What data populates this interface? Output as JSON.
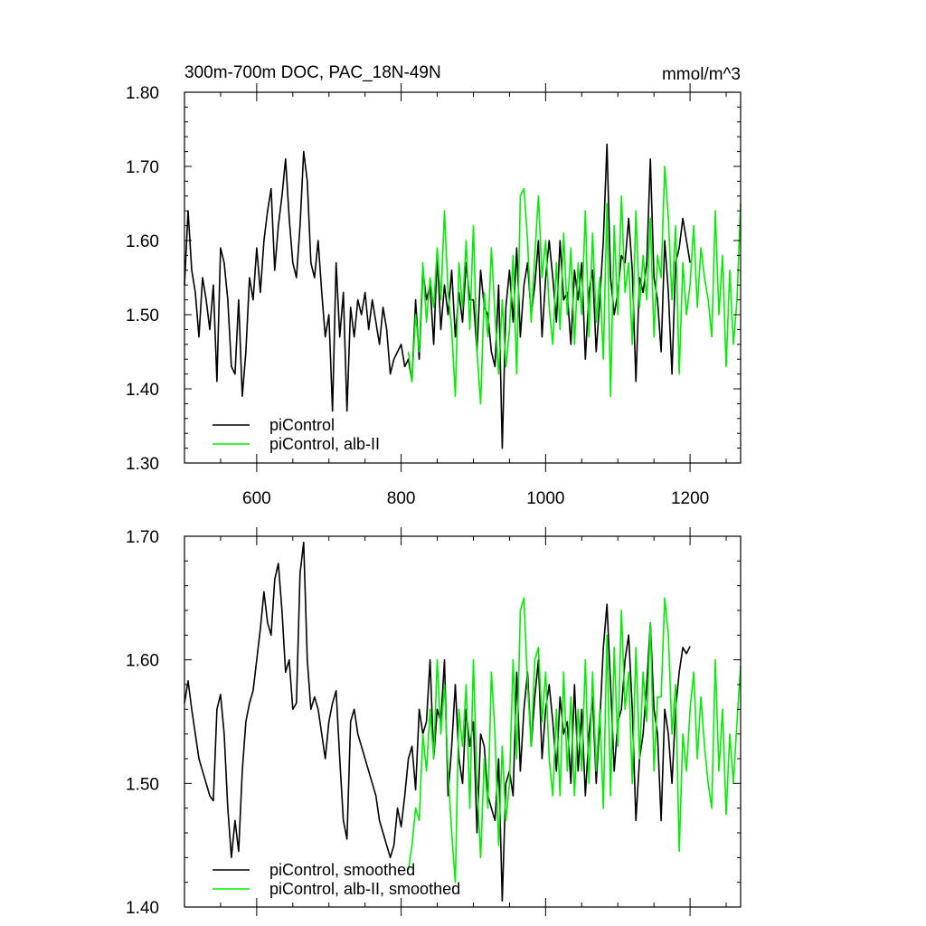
{
  "colors": {
    "series_black": "#000000",
    "series_green": "#00ee00"
  },
  "chart_data": [
    {
      "type": "line",
      "title": "300m-700m DOC, PAC_18N-49N",
      "units_label": "mmol/m^3",
      "xlabel": "",
      "ylabel": "",
      "xlim": [
        500,
        1270
      ],
      "ylim": [
        1.3,
        1.8
      ],
      "x_ticks": [
        600,
        800,
        1000,
        1200
      ],
      "y_ticks": [
        "1.30",
        "1.40",
        "1.50",
        "1.60",
        "1.70",
        "1.80"
      ],
      "legend_position": "bottom-left",
      "series": [
        {
          "name": "piControl",
          "color": "#000000",
          "x": [
            500,
            505,
            510,
            515,
            520,
            525,
            530,
            535,
            540,
            545,
            550,
            555,
            560,
            565,
            570,
            575,
            580,
            585,
            590,
            595,
            600,
            605,
            610,
            615,
            620,
            625,
            630,
            635,
            640,
            645,
            650,
            655,
            660,
            665,
            670,
            675,
            680,
            685,
            690,
            695,
            700,
            705,
            710,
            715,
            720,
            725,
            730,
            735,
            740,
            745,
            750,
            755,
            760,
            765,
            770,
            775,
            780,
            785,
            790,
            795,
            800,
            805,
            810,
            815,
            820,
            825,
            830,
            835,
            840,
            845,
            850,
            855,
            860,
            865,
            870,
            875,
            880,
            885,
            890,
            895,
            900,
            905,
            910,
            915,
            920,
            925,
            930,
            935,
            940,
            945,
            950,
            955,
            960,
            965,
            970,
            975,
            980,
            985,
            990,
            995,
            1000,
            1005,
            1010,
            1015,
            1020,
            1025,
            1030,
            1035,
            1040,
            1045,
            1050,
            1055,
            1060,
            1065,
            1070,
            1075,
            1080,
            1085,
            1090,
            1095,
            1100,
            1105,
            1110,
            1115,
            1120,
            1125,
            1130,
            1135,
            1140,
            1145,
            1150,
            1155,
            1160,
            1165,
            1170,
            1175,
            1180,
            1185,
            1190,
            1195,
            1200
          ],
          "values": [
            1.54,
            1.64,
            1.56,
            1.53,
            1.47,
            1.55,
            1.52,
            1.48,
            1.54,
            1.41,
            1.59,
            1.57,
            1.52,
            1.43,
            1.42,
            1.52,
            1.39,
            1.45,
            1.55,
            1.52,
            1.59,
            1.53,
            1.6,
            1.64,
            1.67,
            1.56,
            1.62,
            1.66,
            1.71,
            1.63,
            1.57,
            1.55,
            1.62,
            1.72,
            1.68,
            1.57,
            1.55,
            1.6,
            1.53,
            1.47,
            1.5,
            1.37,
            1.57,
            1.47,
            1.53,
            1.37,
            1.51,
            1.47,
            1.52,
            1.5,
            1.53,
            1.48,
            1.52,
            1.49,
            1.46,
            1.51,
            1.48,
            1.42,
            1.44,
            1.45,
            1.46,
            1.43,
            1.44,
            1.41,
            1.52,
            1.44,
            1.56,
            1.52,
            1.54,
            1.46,
            1.58,
            1.48,
            1.54,
            1.5,
            1.56,
            1.47,
            1.53,
            1.49,
            1.57,
            1.52,
            1.52,
            1.45,
            1.56,
            1.51,
            1.5,
            1.45,
            1.43,
            1.54,
            1.32,
            1.51,
            1.56,
            1.49,
            1.59,
            1.47,
            1.54,
            1.57,
            1.5,
            1.54,
            1.6,
            1.47,
            1.55,
            1.6,
            1.55,
            1.49,
            1.6,
            1.52,
            1.53,
            1.46,
            1.56,
            1.52,
            1.57,
            1.44,
            1.53,
            1.56,
            1.45,
            1.52,
            1.6,
            1.73,
            1.55,
            1.5,
            1.53,
            1.58,
            1.57,
            1.63,
            1.56,
            1.41,
            1.55,
            1.53,
            1.57,
            1.71,
            1.55,
            1.52,
            1.45,
            1.6,
            1.53,
            1.42,
            1.57,
            1.59,
            1.63,
            1.6,
            1.57
          ]
        },
        {
          "name": "piControl, alb-II",
          "color": "#00ee00",
          "x": [
            810,
            815,
            820,
            825,
            830,
            835,
            840,
            845,
            850,
            855,
            860,
            865,
            870,
            875,
            880,
            885,
            890,
            895,
            900,
            905,
            910,
            915,
            920,
            925,
            930,
            935,
            940,
            945,
            950,
            955,
            960,
            965,
            970,
            975,
            980,
            985,
            990,
            995,
            1000,
            1005,
            1010,
            1015,
            1020,
            1025,
            1030,
            1035,
            1040,
            1045,
            1050,
            1055,
            1060,
            1065,
            1070,
            1075,
            1080,
            1085,
            1090,
            1095,
            1100,
            1105,
            1110,
            1115,
            1120,
            1125,
            1130,
            1135,
            1140,
            1145,
            1150,
            1155,
            1160,
            1165,
            1170,
            1175,
            1180,
            1185,
            1190,
            1195,
            1200,
            1205,
            1210,
            1215,
            1220,
            1225,
            1230,
            1235,
            1240,
            1245,
            1250,
            1255,
            1260,
            1265,
            1270
          ],
          "values": [
            1.45,
            1.41,
            1.5,
            1.45,
            1.57,
            1.49,
            1.55,
            1.51,
            1.59,
            1.52,
            1.64,
            1.53,
            1.48,
            1.39,
            1.57,
            1.51,
            1.6,
            1.48,
            1.62,
            1.45,
            1.38,
            1.53,
            1.47,
            1.59,
            1.5,
            1.42,
            1.52,
            1.43,
            1.48,
            1.58,
            1.42,
            1.66,
            1.67,
            1.6,
            1.49,
            1.58,
            1.66,
            1.55,
            1.6,
            1.51,
            1.46,
            1.57,
            1.48,
            1.61,
            1.5,
            1.59,
            1.46,
            1.57,
            1.5,
            1.64,
            1.47,
            1.61,
            1.49,
            1.55,
            1.44,
            1.65,
            1.39,
            1.62,
            1.5,
            1.66,
            1.53,
            1.57,
            1.46,
            1.64,
            1.51,
            1.58,
            1.52,
            1.63,
            1.47,
            1.58,
            1.55,
            1.7,
            1.63,
            1.52,
            1.62,
            1.42,
            1.57,
            1.5,
            1.54,
            1.62,
            1.51,
            1.59,
            1.55,
            1.52,
            1.47,
            1.64,
            1.5,
            1.58,
            1.43,
            1.56,
            1.46,
            1.52,
            1.65
          ]
        }
      ]
    },
    {
      "type": "line",
      "title": "",
      "xlabel": "",
      "ylabel": "",
      "xlim": [
        500,
        1270
      ],
      "ylim": [
        1.4,
        1.7
      ],
      "y_ticks": [
        "1.40",
        "1.50",
        "1.60",
        "1.70"
      ],
      "legend_position": "bottom-left",
      "series": [
        {
          "name": "piControl, smoothed",
          "color": "#000000",
          "x": [
            500,
            505,
            510,
            515,
            520,
            525,
            530,
            535,
            540,
            545,
            550,
            555,
            560,
            565,
            570,
            575,
            580,
            585,
            590,
            595,
            600,
            605,
            610,
            615,
            620,
            625,
            630,
            635,
            640,
            645,
            650,
            655,
            660,
            665,
            670,
            675,
            680,
            685,
            690,
            695,
            700,
            705,
            710,
            715,
            720,
            725,
            730,
            735,
            740,
            745,
            750,
            755,
            760,
            765,
            770,
            775,
            780,
            785,
            790,
            795,
            800,
            805,
            810,
            815,
            820,
            825,
            830,
            835,
            840,
            845,
            850,
            855,
            860,
            865,
            870,
            875,
            880,
            885,
            890,
            895,
            900,
            905,
            910,
            915,
            920,
            925,
            930,
            935,
            940,
            945,
            950,
            955,
            960,
            965,
            970,
            975,
            980,
            985,
            990,
            995,
            1000,
            1005,
            1010,
            1015,
            1020,
            1025,
            1030,
            1035,
            1040,
            1045,
            1050,
            1055,
            1060,
            1065,
            1070,
            1075,
            1080,
            1085,
            1090,
            1095,
            1100,
            1105,
            1110,
            1115,
            1120,
            1125,
            1130,
            1135,
            1140,
            1145,
            1150,
            1155,
            1160,
            1165,
            1170,
            1175,
            1180,
            1185,
            1190,
            1195,
            1200
          ],
          "values": [
            1.565,
            1.583,
            1.56,
            1.54,
            1.52,
            1.51,
            1.5,
            1.49,
            1.486,
            1.56,
            1.572,
            1.54,
            1.48,
            1.44,
            1.47,
            1.445,
            1.51,
            1.55,
            1.565,
            1.575,
            1.6,
            1.625,
            1.655,
            1.63,
            1.62,
            1.665,
            1.678,
            1.64,
            1.59,
            1.6,
            1.56,
            1.565,
            1.67,
            1.695,
            1.6,
            1.56,
            1.57,
            1.56,
            1.54,
            1.52,
            1.55,
            1.565,
            1.575,
            1.52,
            1.47,
            1.455,
            1.55,
            1.56,
            1.54,
            1.53,
            1.52,
            1.51,
            1.5,
            1.49,
            1.47,
            1.46,
            1.45,
            1.44,
            1.45,
            1.48,
            1.465,
            1.49,
            1.52,
            1.53,
            1.495,
            1.56,
            1.54,
            1.55,
            1.6,
            1.52,
            1.56,
            1.55,
            1.6,
            1.49,
            1.53,
            1.58,
            1.52,
            1.5,
            1.56,
            1.53,
            1.55,
            1.46,
            1.54,
            1.53,
            1.49,
            1.48,
            1.47,
            1.52,
            1.405,
            1.5,
            1.51,
            1.49,
            1.59,
            1.51,
            1.56,
            1.59,
            1.53,
            1.57,
            1.6,
            1.52,
            1.56,
            1.58,
            1.55,
            1.51,
            1.57,
            1.54,
            1.55,
            1.5,
            1.58,
            1.51,
            1.56,
            1.49,
            1.54,
            1.57,
            1.5,
            1.55,
            1.61,
            1.645,
            1.58,
            1.51,
            1.55,
            1.56,
            1.6,
            1.62,
            1.56,
            1.47,
            1.52,
            1.54,
            1.58,
            1.63,
            1.56,
            1.54,
            1.47,
            1.56,
            1.54,
            1.5,
            1.56,
            1.59,
            1.61,
            1.605,
            1.611
          ]
        },
        {
          "name": "piControl, alb-II, smoothed",
          "color": "#00ee00",
          "x": [
            810,
            815,
            820,
            825,
            830,
            835,
            840,
            845,
            850,
            855,
            860,
            865,
            870,
            875,
            880,
            885,
            890,
            895,
            900,
            905,
            910,
            915,
            920,
            925,
            930,
            935,
            940,
            945,
            950,
            955,
            960,
            965,
            970,
            975,
            980,
            985,
            990,
            995,
            1000,
            1005,
            1010,
            1015,
            1020,
            1025,
            1030,
            1035,
            1040,
            1045,
            1050,
            1055,
            1060,
            1065,
            1070,
            1075,
            1080,
            1085,
            1090,
            1095,
            1100,
            1105,
            1110,
            1115,
            1120,
            1125,
            1130,
            1135,
            1140,
            1145,
            1150,
            1155,
            1160,
            1165,
            1170,
            1175,
            1180,
            1185,
            1190,
            1195,
            1200,
            1205,
            1210,
            1215,
            1220,
            1225,
            1230,
            1235,
            1240,
            1245,
            1250,
            1255,
            1260,
            1265,
            1270
          ],
          "values": [
            1.43,
            1.45,
            1.48,
            1.47,
            1.54,
            1.51,
            1.56,
            1.52,
            1.6,
            1.54,
            1.58,
            1.51,
            1.46,
            1.42,
            1.56,
            1.53,
            1.58,
            1.48,
            1.6,
            1.5,
            1.44,
            1.52,
            1.48,
            1.59,
            1.54,
            1.45,
            1.53,
            1.47,
            1.5,
            1.6,
            1.52,
            1.64,
            1.65,
            1.58,
            1.53,
            1.6,
            1.61,
            1.55,
            1.59,
            1.52,
            1.49,
            1.56,
            1.49,
            1.59,
            1.51,
            1.57,
            1.49,
            1.56,
            1.51,
            1.6,
            1.5,
            1.59,
            1.51,
            1.56,
            1.48,
            1.62,
            1.49,
            1.61,
            1.53,
            1.64,
            1.56,
            1.59,
            1.5,
            1.61,
            1.52,
            1.59,
            1.55,
            1.63,
            1.51,
            1.57,
            1.57,
            1.65,
            1.62,
            1.54,
            1.58,
            1.445,
            1.54,
            1.51,
            1.56,
            1.59,
            1.52,
            1.57,
            1.53,
            1.5,
            1.48,
            1.6,
            1.51,
            1.56,
            1.475,
            1.54,
            1.5,
            1.55,
            1.595
          ]
        }
      ]
    }
  ]
}
